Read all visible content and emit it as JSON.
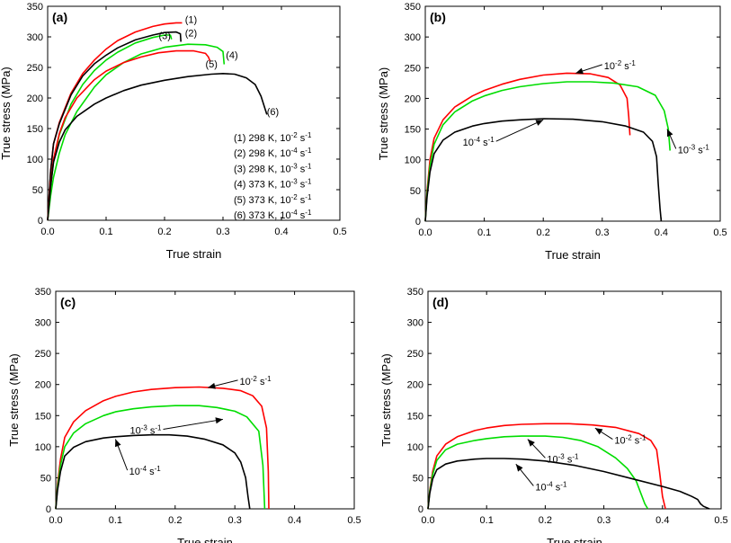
{
  "chart_data": [
    {
      "type": "line",
      "panel_label": "(a)",
      "xlabel": "True strain",
      "ylabel": "True stress (MPa)",
      "xlim": [
        0,
        0.5
      ],
      "ylim": [
        0,
        350
      ],
      "xticks": [
        "0.0",
        "0.1",
        "0.2",
        "0.3",
        "0.4",
        "0.5"
      ],
      "yticks": [
        "0",
        "50",
        "100",
        "150",
        "200",
        "250",
        "300",
        "350"
      ],
      "legend_text": [
        {
          "base": "(1) 298 K, 10",
          "exp": "-2",
          "unit": " s",
          "uexp": "-1"
        },
        {
          "base": "(2) 298 K, 10",
          "exp": "-4",
          "unit": " s",
          "uexp": "-1"
        },
        {
          "base": "(3) 298 K, 10",
          "exp": "-3",
          "unit": " s",
          "uexp": "-1"
        },
        {
          "base": "(4) 373 K, 10",
          "exp": "-3",
          "unit": " s",
          "uexp": "-1"
        },
        {
          "base": "(5) 373 K, 10",
          "exp": "-2",
          "unit": " s",
          "uexp": "-1"
        },
        {
          "base": "(6) 373 K, 10",
          "exp": "-4",
          "unit": " s",
          "uexp": "-1"
        }
      ],
      "series": [
        {
          "name": "(1)",
          "color": "#ff0000",
          "x": [
            0,
            0.005,
            0.01,
            0.02,
            0.04,
            0.06,
            0.08,
            0.1,
            0.12,
            0.15,
            0.18,
            0.2,
            0.22,
            0.23
          ],
          "y": [
            0,
            80,
            125,
            160,
            208,
            240,
            262,
            280,
            294,
            308,
            317,
            321,
            323,
            323
          ]
        },
        {
          "name": "(2)",
          "color": "#000000",
          "x": [
            0,
            0.005,
            0.01,
            0.02,
            0.04,
            0.06,
            0.08,
            0.1,
            0.12,
            0.15,
            0.18,
            0.2,
            0.22,
            0.227,
            0.228
          ],
          "y": [
            0,
            80,
            125,
            158,
            205,
            236,
            256,
            270,
            282,
            295,
            303,
            307,
            308,
            305,
            292
          ]
        },
        {
          "name": "(3)",
          "color": "#00dd00",
          "x": [
            0,
            0.005,
            0.01,
            0.02,
            0.04,
            0.06,
            0.08,
            0.1,
            0.12,
            0.15,
            0.18,
            0.2,
            0.21,
            0.212
          ],
          "y": [
            0,
            55,
            95,
            140,
            190,
            222,
            245,
            262,
            275,
            290,
            299,
            303,
            303,
            296
          ]
        },
        {
          "name": "(4)",
          "color": "#00dd00",
          "x": [
            0,
            0.005,
            0.01,
            0.02,
            0.03,
            0.05,
            0.08,
            0.1,
            0.13,
            0.16,
            0.2,
            0.24,
            0.27,
            0.29,
            0.3,
            0.302
          ],
          "y": [
            0,
            40,
            70,
            110,
            140,
            178,
            218,
            238,
            258,
            272,
            283,
            288,
            287,
            283,
            276,
            255
          ]
        },
        {
          "name": "(5)",
          "color": "#ff0000",
          "x": [
            0,
            0.005,
            0.01,
            0.02,
            0.03,
            0.05,
            0.08,
            0.1,
            0.13,
            0.16,
            0.19,
            0.22,
            0.25,
            0.27,
            0.275,
            0.278
          ],
          "y": [
            0,
            60,
            100,
            142,
            168,
            200,
            230,
            244,
            258,
            267,
            274,
            277,
            277,
            273,
            267,
            260
          ]
        },
        {
          "name": "(6)",
          "color": "#000000",
          "x": [
            0,
            0.005,
            0.01,
            0.02,
            0.03,
            0.05,
            0.08,
            0.1,
            0.13,
            0.16,
            0.2,
            0.24,
            0.28,
            0.3,
            0.32,
            0.34,
            0.355,
            0.365,
            0.375
          ],
          "y": [
            0,
            55,
            95,
            128,
            148,
            170,
            190,
            200,
            212,
            221,
            229,
            235,
            239,
            240,
            239,
            233,
            222,
            203,
            173
          ]
        }
      ],
      "curve_labels": [
        {
          "text": "(1)",
          "x": 0.235,
          "y": 323
        },
        {
          "text": "(2)",
          "x": 0.235,
          "y": 301
        },
        {
          "text": "(3)",
          "x": 0.19,
          "y": 296
        },
        {
          "text": "(4)",
          "x": 0.305,
          "y": 265
        },
        {
          "text": "(5)",
          "x": 0.27,
          "y": 250
        },
        {
          "text": "(6)",
          "x": 0.375,
          "y": 172
        }
      ]
    },
    {
      "type": "line",
      "panel_label": "(b)",
      "xlabel": "True strain",
      "ylabel": "True stress (MPa)",
      "xlim": [
        0,
        0.5
      ],
      "ylim": [
        0,
        350
      ],
      "xticks": [
        "0.0",
        "0.1",
        "0.2",
        "0.3",
        "0.4",
        "0.5"
      ],
      "yticks": [
        "0",
        "50",
        "100",
        "150",
        "200",
        "250",
        "300",
        "350"
      ],
      "series": [
        {
          "name": "10-2 s-1",
          "color": "#ff0000",
          "x": [
            0,
            0.003,
            0.008,
            0.015,
            0.03,
            0.05,
            0.08,
            0.1,
            0.13,
            0.16,
            0.2,
            0.24,
            0.28,
            0.31,
            0.33,
            0.342,
            0.345,
            0.347
          ],
          "y": [
            0,
            50,
            100,
            135,
            165,
            186,
            204,
            213,
            223,
            231,
            238,
            241,
            240,
            234,
            222,
            200,
            170,
            140
          ]
        },
        {
          "name": "10-3 s-1",
          "color": "#00dd00",
          "x": [
            0,
            0.003,
            0.008,
            0.015,
            0.03,
            0.05,
            0.08,
            0.1,
            0.13,
            0.16,
            0.2,
            0.24,
            0.28,
            0.32,
            0.36,
            0.39,
            0.405,
            0.412,
            0.415
          ],
          "y": [
            0,
            45,
            90,
            125,
            157,
            178,
            196,
            204,
            213,
            219,
            224,
            227,
            227,
            225,
            219,
            205,
            180,
            150,
            115
          ]
        },
        {
          "name": "10-4 s-1",
          "color": "#000000",
          "x": [
            0,
            0.003,
            0.008,
            0.015,
            0.03,
            0.05,
            0.08,
            0.1,
            0.13,
            0.16,
            0.2,
            0.25,
            0.3,
            0.34,
            0.37,
            0.385,
            0.392,
            0.395,
            0.398,
            0.4
          ],
          "y": [
            0,
            40,
            80,
            110,
            132,
            145,
            155,
            159,
            163,
            165,
            167,
            166,
            162,
            155,
            145,
            130,
            105,
            60,
            20,
            0
          ]
        }
      ],
      "annotations": [
        {
          "base": "10",
          "exp": "-2",
          "unit": " s",
          "uexp": "-1",
          "x": 0.3,
          "y": 255,
          "ax": 0.255,
          "ay": 241
        },
        {
          "base": "10",
          "exp": "-3",
          "unit": " s",
          "uexp": "-1",
          "x": 0.425,
          "y": 118,
          "ax": 0.41,
          "ay": 150
        },
        {
          "base": "10",
          "exp": "-4",
          "unit": " s",
          "uexp": "-1",
          "x": 0.12,
          "y": 130,
          "ax": 0.2,
          "ay": 165
        }
      ]
    },
    {
      "type": "line",
      "panel_label": "(c)",
      "xlabel": "True strain",
      "ylabel": "True stress (MPa)",
      "xlim": [
        0,
        0.5
      ],
      "ylim": [
        0,
        350
      ],
      "xticks": [
        "0.0",
        "0.1",
        "0.2",
        "0.3",
        "0.4",
        "0.5"
      ],
      "yticks": [
        "0",
        "50",
        "100",
        "150",
        "200",
        "250",
        "300",
        "350"
      ],
      "series": [
        {
          "name": "10-2 s-1",
          "color": "#ff0000",
          "x": [
            0,
            0.003,
            0.008,
            0.015,
            0.03,
            0.05,
            0.08,
            0.1,
            0.13,
            0.16,
            0.2,
            0.24,
            0.28,
            0.31,
            0.33,
            0.345,
            0.353,
            0.356,
            0.357
          ],
          "y": [
            0,
            40,
            80,
            115,
            140,
            158,
            174,
            181,
            188,
            192,
            195,
            196,
            194,
            190,
            182,
            165,
            130,
            60,
            0
          ]
        },
        {
          "name": "10-3 s-1",
          "color": "#00dd00",
          "x": [
            0,
            0.003,
            0.008,
            0.015,
            0.03,
            0.05,
            0.08,
            0.1,
            0.13,
            0.16,
            0.2,
            0.24,
            0.27,
            0.3,
            0.32,
            0.34,
            0.347,
            0.35
          ],
          "y": [
            0,
            35,
            70,
            100,
            122,
            137,
            150,
            156,
            161,
            164,
            166,
            166,
            163,
            157,
            148,
            125,
            70,
            0
          ]
        },
        {
          "name": "10-4 s-1",
          "color": "#000000",
          "x": [
            0,
            0.003,
            0.008,
            0.015,
            0.03,
            0.05,
            0.08,
            0.1,
            0.13,
            0.16,
            0.19,
            0.22,
            0.25,
            0.28,
            0.3,
            0.31,
            0.318,
            0.322,
            0.325
          ],
          "y": [
            0,
            30,
            60,
            85,
            99,
            108,
            114,
            116,
            118,
            119,
            119,
            117,
            112,
            103,
            90,
            75,
            50,
            20,
            0
          ]
        }
      ],
      "annotations": [
        {
          "base": "10",
          "exp": "-2",
          "unit": " s",
          "uexp": "-1",
          "x": 0.305,
          "y": 207,
          "ax": 0.255,
          "ay": 195
        },
        {
          "base": "10",
          "exp": "-3",
          "unit": " s",
          "uexp": "-1",
          "x": 0.18,
          "y": 128,
          "ax": 0.28,
          "ay": 144
        },
        {
          "base": "10",
          "exp": "-4",
          "unit": " s",
          "uexp": "-1",
          "x": 0.12,
          "y": 62,
          "ax": 0.1,
          "ay": 112
        }
      ]
    },
    {
      "type": "line",
      "panel_label": "(d)",
      "xlabel": "True strain",
      "ylabel": "True stress (MPa)",
      "xlim": [
        0,
        0.5
      ],
      "ylim": [
        0,
        350
      ],
      "xticks": [
        "0.0",
        "0.1",
        "0.2",
        "0.3",
        "0.4",
        "0.5"
      ],
      "yticks": [
        "0",
        "50",
        "100",
        "150",
        "200",
        "250",
        "300",
        "350"
      ],
      "series": [
        {
          "name": "10-2 s-1",
          "color": "#ff0000",
          "x": [
            0,
            0.003,
            0.008,
            0.015,
            0.03,
            0.05,
            0.08,
            0.1,
            0.13,
            0.16,
            0.2,
            0.24,
            0.28,
            0.32,
            0.36,
            0.38,
            0.39,
            0.395,
            0.4,
            0.405
          ],
          "y": [
            0,
            30,
            60,
            85,
            104,
            116,
            126,
            130,
            134,
            136,
            137,
            137,
            135,
            131,
            121,
            110,
            95,
            60,
            20,
            0
          ]
        },
        {
          "name": "10-3 s-1",
          "color": "#00dd00",
          "x": [
            0,
            0.003,
            0.008,
            0.015,
            0.03,
            0.05,
            0.08,
            0.1,
            0.13,
            0.16,
            0.2,
            0.23,
            0.26,
            0.29,
            0.32,
            0.34,
            0.355,
            0.363,
            0.37,
            0.375
          ],
          "y": [
            0,
            28,
            55,
            78,
            95,
            104,
            110,
            113,
            116,
            117,
            117,
            115,
            110,
            100,
            82,
            65,
            45,
            25,
            8,
            0
          ]
        },
        {
          "name": "10-4 s-1",
          "color": "#000000",
          "x": [
            0,
            0.003,
            0.008,
            0.015,
            0.03,
            0.05,
            0.08,
            0.1,
            0.13,
            0.16,
            0.2,
            0.25,
            0.3,
            0.35,
            0.4,
            0.43,
            0.45,
            0.46,
            0.465,
            0.47,
            0.48
          ],
          "y": [
            0,
            25,
            48,
            63,
            72,
            77,
            80,
            81,
            81,
            80,
            77,
            70,
            60,
            48,
            36,
            28,
            20,
            15,
            8,
            4,
            0
          ]
        }
      ],
      "annotations": [
        {
          "base": "10",
          "exp": "-2",
          "unit": " s",
          "uexp": "-1",
          "x": 0.315,
          "y": 112,
          "ax": 0.285,
          "ay": 130
        },
        {
          "base": "10",
          "exp": "-3",
          "unit": " s",
          "uexp": "-1",
          "x": 0.2,
          "y": 82,
          "ax": 0.17,
          "ay": 112
        },
        {
          "base": "10",
          "exp": "-4",
          "unit": " s",
          "uexp": "-1",
          "x": 0.18,
          "y": 37,
          "ax": 0.15,
          "ay": 72
        }
      ]
    }
  ]
}
